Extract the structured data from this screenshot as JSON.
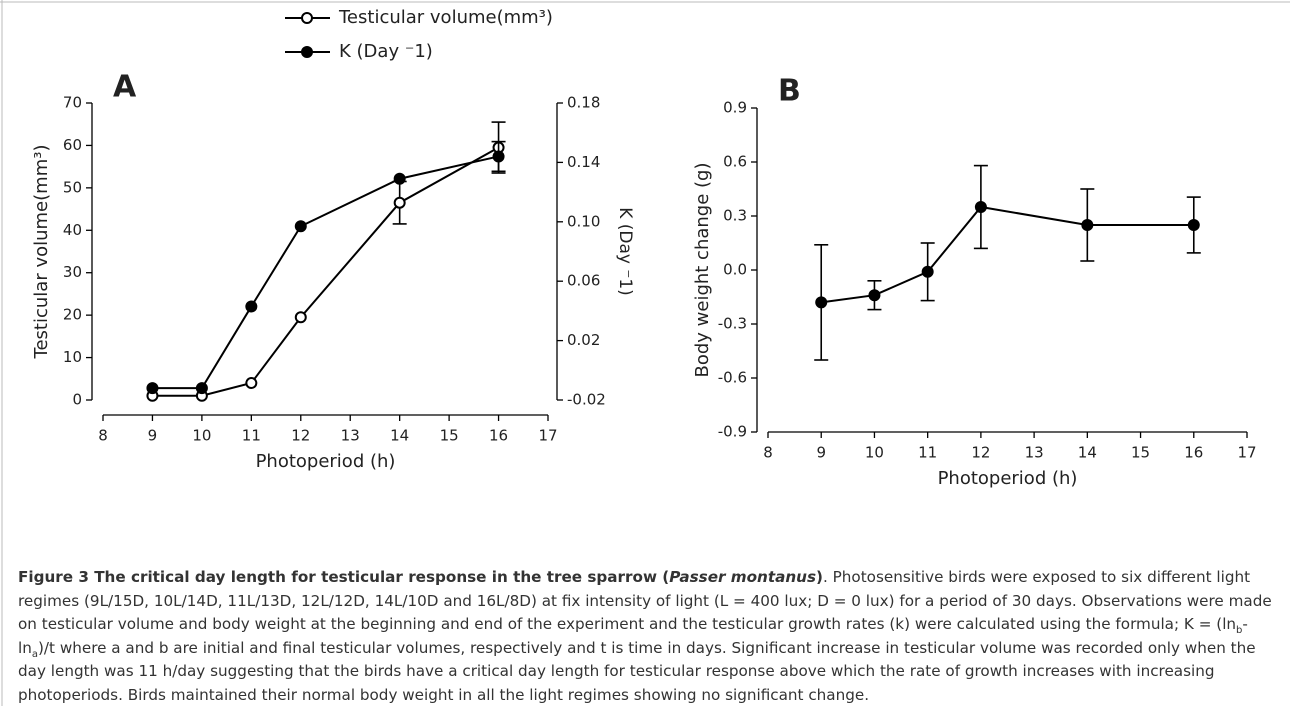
{
  "chart_data": [
    {
      "type": "line",
      "panel_label": "A",
      "x": [
        9,
        10,
        11,
        12,
        14,
        16
      ],
      "xlim": [
        8,
        17
      ],
      "xticks": [
        8,
        9,
        10,
        11,
        12,
        13,
        14,
        15,
        16,
        17
      ],
      "xlabel": "Photoperiod (h)",
      "ylabel": "Testicular volume(mm³)",
      "y2label": "K (Day ⁻1)",
      "ylim": [
        0,
        70
      ],
      "yticks": [
        0,
        10,
        20,
        30,
        40,
        50,
        60,
        70
      ],
      "y2lim": [
        -0.02,
        0.18
      ],
      "y2ticks": [
        -0.02,
        0.02,
        0.06,
        {
          "value": 0.1,
          "label": "0.10"
        },
        0.14,
        0.18
      ],
      "series": [
        {
          "name": "Testicular volume(mm³)",
          "color": "#000000",
          "marker": "open",
          "values": [
            1,
            1,
            4,
            19.5,
            46.5,
            59.5
          ],
          "errors": [
            null,
            null,
            null,
            null,
            5,
            6
          ]
        },
        {
          "name": "K (Day ⁻1)",
          "color": "#000000",
          "marker": "filled",
          "axis": "y2",
          "values": [
            -0.012,
            -0.012,
            0.043,
            0.097,
            0.129,
            0.144
          ],
          "errors": [
            null,
            null,
            null,
            null,
            null,
            0.01
          ]
        }
      ]
    },
    {
      "type": "line",
      "panel_label": "B",
      "x": [
        9,
        10,
        11,
        12,
        14,
        16
      ],
      "xlim": [
        8,
        17
      ],
      "xticks": [
        8,
        9,
        10,
        11,
        12,
        13,
        14,
        15,
        16,
        17
      ],
      "xlabel": "Photoperiod (h)",
      "ylabel": "Body weight change (g)",
      "ylim": [
        -0.9,
        0.9
      ],
      "yticks": [
        -0.9,
        -0.6,
        -0.3,
        {
          "value": 0,
          "label": "0.0"
        },
        0.3,
        0.6,
        0.9
      ],
      "series": [
        {
          "name": "Body weight change",
          "color": "#000000",
          "marker": "filled",
          "values": [
            -0.18,
            -0.14,
            -0.01,
            0.35,
            0.25,
            0.25
          ],
          "errors": [
            0.32,
            0.08,
            0.16,
            0.23,
            0.2,
            0.155
          ]
        }
      ]
    }
  ],
  "caption": {
    "title": "Figure 3 The critical day length for testicular response in the tree sparrow (",
    "species": "Passer montanus",
    "title_end": ")",
    "text_1": ". Photosensitive birds were exposed to six different light regimes (9L/15D, 10L/14D, 11L/13D, 12L/12D, 14L/10D and 16L/8D) at fix intensity of light (L = 400 lux; D = 0 lux) for a period of 30 days. Observations were made on testicular volume and body weight at the beginning and end of the experiment and the testicular growth rates (k) were calculated using the formula; K = (ln",
    "sub_b": "b",
    "text_2": "-ln",
    "sub_a": "a",
    "text_3": ")/t where a and b are initial and final testicular volumes, respectively and t is time in days. Significant increase in testicular volume was recorded only when the day length was 11 h/day suggesting that the birds have a critical day length for testicular response above which the rate of growth increases with increasing photoperiods. Birds maintained their normal body weight in all the light regimes showing no significant change."
  }
}
